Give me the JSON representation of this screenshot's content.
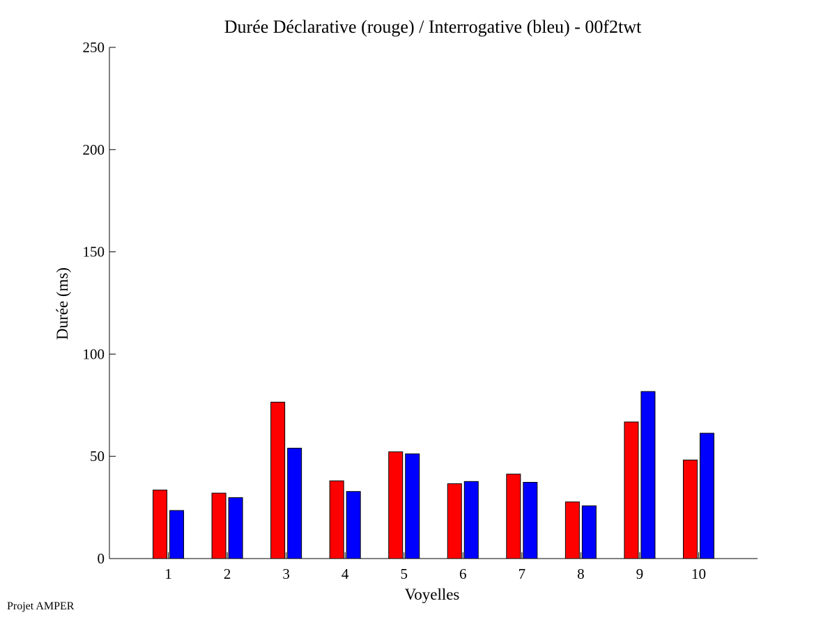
{
  "chart_data": {
    "type": "bar",
    "title": "Durée Déclarative (rouge) / Interrogative (bleu) - 00f2twt",
    "xlabel": "Voyelles",
    "ylabel": "Durée (ms)",
    "categories": [
      "1",
      "2",
      "3",
      "4",
      "5",
      "6",
      "7",
      "8",
      "9",
      "10"
    ],
    "ylim": [
      0,
      250
    ],
    "yticks": [
      "0",
      "50",
      "100",
      "150",
      "200",
      "250"
    ],
    "grid": false,
    "series": [
      {
        "color": "#ff0000",
        "values": [
          33.5,
          32,
          76.5,
          38,
          52.2,
          36.6,
          41.3,
          27.7,
          66.8,
          48.2
        ]
      },
      {
        "color": "#0000ff",
        "values": [
          23.5,
          29.8,
          54,
          32.8,
          51.2,
          37.7,
          37.3,
          25.8,
          81.7,
          61.3
        ]
      }
    ]
  },
  "footer": {
    "text": "Projet AMPER"
  }
}
